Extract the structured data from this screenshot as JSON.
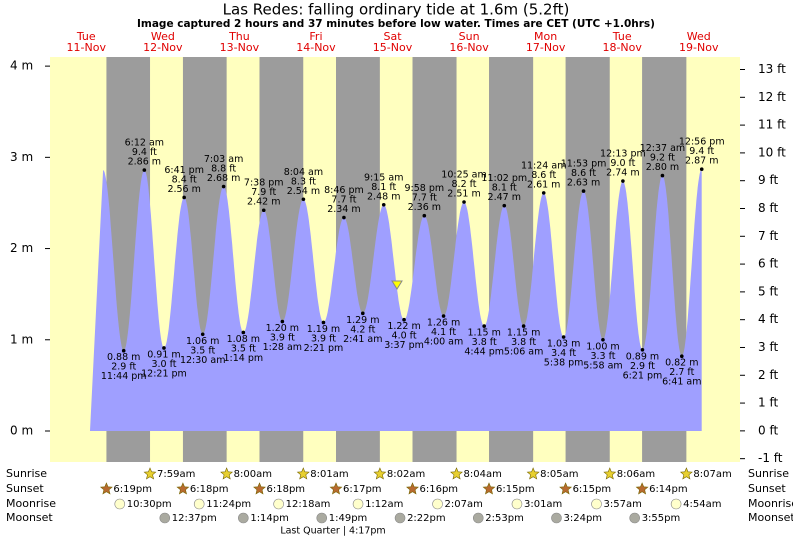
{
  "header": {
    "title": "Las Redes: falling  ordinary tide at 1.6m (5.2ft)",
    "subtitle": "Image captured 2 hours and 37 minutes before low water. Times are CET (UTC +1.0hrs)"
  },
  "current_m": 1.6,
  "days": [
    {
      "weekday": "Tue",
      "date": "11-Nov"
    },
    {
      "weekday": "Wed",
      "date": "12-Nov"
    },
    {
      "weekday": "Thu",
      "date": "13-Nov"
    },
    {
      "weekday": "Fri",
      "date": "14-Nov"
    },
    {
      "weekday": "Sat",
      "date": "15-Nov"
    },
    {
      "weekday": "Sun",
      "date": "16-Nov"
    },
    {
      "weekday": "Mon",
      "date": "17-Nov"
    },
    {
      "weekday": "Tue",
      "date": "18-Nov"
    },
    {
      "weekday": "Wed",
      "date": "19-Nov"
    }
  ],
  "ylim_m": [
    -0.34,
    4.1
  ],
  "yticks_m": [
    {
      "value": 0,
      "label": "0 m"
    },
    {
      "value": 1,
      "label": "1 m"
    },
    {
      "value": 2,
      "label": "2 m"
    },
    {
      "value": 3,
      "label": "3 m"
    },
    {
      "value": 4,
      "label": "4 m"
    }
  ],
  "ylim_ft": [
    -1.12,
    13.45
  ],
  "yticks_ft": [
    {
      "value": -1,
      "label": "-1 ft"
    },
    {
      "value": 0,
      "label": "0 ft"
    },
    {
      "value": 1,
      "label": "1 ft"
    },
    {
      "value": 2,
      "label": "2 ft"
    },
    {
      "value": 3,
      "label": "3 ft"
    },
    {
      "value": 4,
      "label": "4 ft"
    },
    {
      "value": 5,
      "label": "5 ft"
    },
    {
      "value": 6,
      "label": "6 ft"
    },
    {
      "value": 7,
      "label": "7 ft"
    },
    {
      "value": 8,
      "label": "8 ft"
    },
    {
      "value": 9,
      "label": "9 ft"
    },
    {
      "value": 10,
      "label": "10 ft"
    },
    {
      "value": 11,
      "label": "11 ft"
    },
    {
      "value": 12,
      "label": "12 ft"
    },
    {
      "value": 13,
      "label": "13 ft"
    }
  ],
  "tides": [
    {
      "time": "11:44 pm",
      "m": 0.88,
      "m_label": "0.88 m",
      "ft_label": "2.9 ft"
    },
    {
      "time": "6:12 am",
      "m": 2.86,
      "m_label": "2.86 m",
      "ft_label": "9.4 ft"
    },
    {
      "time": "12:21 pm",
      "m": 0.91,
      "m_label": "0.91 m",
      "ft_label": "3.0 ft"
    },
    {
      "time": "6:41 pm",
      "m": 2.56,
      "m_label": "2.56 m",
      "ft_label": "8.4 ft"
    },
    {
      "time": "12:30 am",
      "m": 1.06,
      "m_label": "1.06 m",
      "ft_label": "3.5 ft"
    },
    {
      "time": "7:03 am",
      "m": 2.68,
      "m_label": "2.68 m",
      "ft_label": "8.8 ft"
    },
    {
      "time": "1:14 pm",
      "m": 1.08,
      "m_label": "1.08 m",
      "ft_label": "3.5 ft"
    },
    {
      "time": "7:38 pm",
      "m": 2.42,
      "m_label": "2.42 m",
      "ft_label": "7.9 ft"
    },
    {
      "time": "1:28 am",
      "m": 1.2,
      "m_label": "1.20 m",
      "ft_label": "3.9 ft"
    },
    {
      "time": "8:04 am",
      "m": 2.54,
      "m_label": "2.54 m",
      "ft_label": "8.3 ft"
    },
    {
      "time": "2:21 pm",
      "m": 1.19,
      "m_label": "1.19 m",
      "ft_label": "3.9 ft"
    },
    {
      "time": "8:46 pm",
      "m": 2.34,
      "m_label": "2.34 m",
      "ft_label": "7.7 ft"
    },
    {
      "time": "2:41 am",
      "m": 1.29,
      "m_label": "1.29 m",
      "ft_label": "4.2 ft"
    },
    {
      "time": "9:15 am",
      "m": 2.48,
      "m_label": "2.48 m",
      "ft_label": "8.1 ft"
    },
    {
      "time": "3:37 pm",
      "m": 1.22,
      "m_label": "1.22 m",
      "ft_label": "4.0 ft"
    },
    {
      "time": "9:58 pm",
      "m": 2.36,
      "m_label": "2.36 m",
      "ft_label": "7.7 ft"
    },
    {
      "time": "4:00 am",
      "m": 1.26,
      "m_label": "1.26 m",
      "ft_label": "4.1 ft"
    },
    {
      "time": "10:25 am",
      "m": 2.51,
      "m_label": "2.51 m",
      "ft_label": "8.2 ft"
    },
    {
      "time": "4:44 pm",
      "m": 1.15,
      "m_label": "1.15 m",
      "ft_label": "3.8 ft"
    },
    {
      "time": "11:02 pm",
      "m": 2.47,
      "m_label": "2.47 m",
      "ft_label": "8.1 ft"
    },
    {
      "time": "5:06 am",
      "m": 1.15,
      "m_label": "1.15 m",
      "ft_label": "3.8 ft"
    },
    {
      "time": "11:24 am",
      "m": 2.61,
      "m_label": "2.61 m",
      "ft_label": "8.6 ft"
    },
    {
      "time": "5:38 pm",
      "m": 1.03,
      "m_label": "1.03 m",
      "ft_label": "3.4 ft"
    },
    {
      "time": "11:53 pm",
      "m": 2.63,
      "m_label": "2.63 m",
      "ft_label": "8.6 ft"
    },
    {
      "time": "5:58 am",
      "m": 1.0,
      "m_label": "1.00 m",
      "ft_label": "3.3 ft"
    },
    {
      "time": "12:13 pm",
      "m": 2.74,
      "m_label": "2.74 m",
      "ft_label": "9.0 ft"
    },
    {
      "time": "6:21 pm",
      "m": 0.89,
      "m_label": "0.89 m",
      "ft_label": "2.9 ft"
    },
    {
      "time": "12:37 am",
      "m": 2.8,
      "m_label": "2.80 m",
      "ft_label": "9.2 ft"
    },
    {
      "time": "6:41 am",
      "m": 0.82,
      "m_label": "0.82 m",
      "ft_label": "2.7 ft"
    },
    {
      "time": "12:56 pm",
      "m": 2.87,
      "m_label": "2.87 m",
      "ft_label": "9.4 ft"
    }
  ],
  "rows": {
    "sunrise": {
      "label": "Sunrise",
      "times": [
        "7:59am",
        "8:00am",
        "8:01am",
        "8:02am",
        "8:04am",
        "8:05am",
        "8:06am",
        "8:07am"
      ]
    },
    "sunset": {
      "label": "Sunset",
      "times": [
        "6:19pm",
        "6:18pm",
        "6:18pm",
        "6:17pm",
        "6:16pm",
        "6:15pm",
        "6:15pm",
        "6:14pm"
      ]
    },
    "moonrise": {
      "label": "Moonrise",
      "times": [
        "10:30pm",
        "11:24pm",
        "12:18am",
        "1:12am",
        "2:07am",
        "3:01am",
        "3:57am",
        "4:54am"
      ]
    },
    "moonset": {
      "label": "Moonset",
      "times": [
        "12:37pm",
        "1:14pm",
        "1:49pm",
        "2:22pm",
        "2:53pm",
        "3:24pm",
        "3:55pm"
      ]
    }
  },
  "moon_phase": "Last Quarter | 4:17pm"
}
